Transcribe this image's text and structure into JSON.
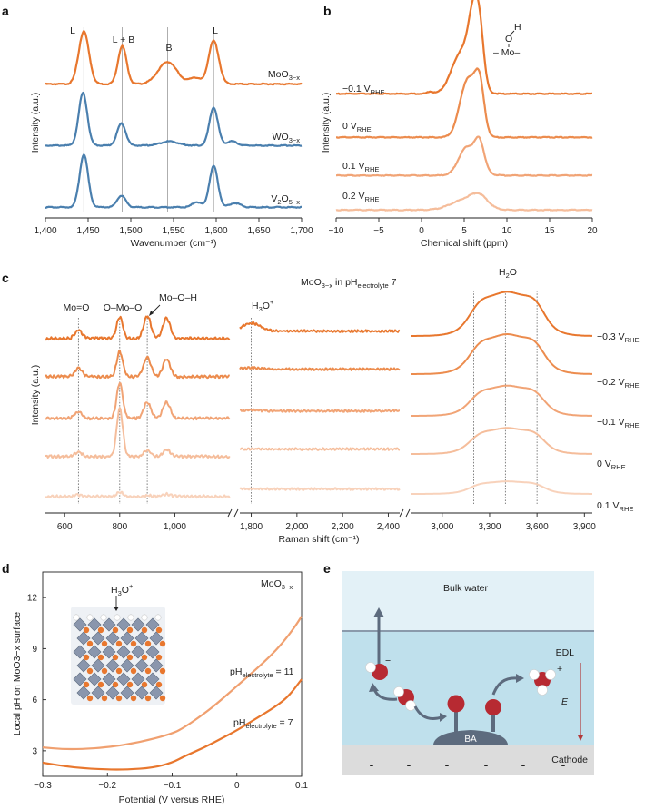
{
  "colors": {
    "moo3": "#e8772e",
    "wo3": "#4a7fae",
    "v2o5": "#4a7fae",
    "orange_shades": [
      "#e8772e",
      "#ec8c4e",
      "#f1a476",
      "#f5bd9b",
      "#f8d2bb"
    ],
    "ph11": "#f0a070",
    "ph7": "#e8772e",
    "water_top": "#e3f1f7",
    "water_edl": "#bfe0ec",
    "cathode": "#dcdcdc",
    "ba": "#5d6b7e",
    "arrow_e": "#b23a3a"
  },
  "panels": {
    "a": {
      "label": "a",
      "ylabel": "Intensity (a.u.)",
      "xlabel": "Wavenumber (cm⁻¹)",
      "xticks": [
        "1,400",
        "1,450",
        "1,500",
        "1,550",
        "1,600",
        "1,650",
        "1,700"
      ],
      "peak_labels": [
        "L",
        "L + B",
        "B",
        "L"
      ],
      "series_names": [
        "MoO3−x",
        "WO3−x",
        "V2O5−x"
      ],
      "series_base": [
        "MoO",
        "WO",
        "V"
      ],
      "series_sub1": [
        "3−x",
        "3−x",
        "2"
      ],
      "series_mid": [
        "",
        "",
        "O"
      ],
      "series_sub2": [
        "",
        "",
        "5−x"
      ]
    },
    "b": {
      "label": "b",
      "ylabel": "Intensity (a.u.)",
      "xlabel": "Chemical shift (ppm)",
      "xticks": [
        "−10",
        "−5",
        "0",
        "5",
        "10",
        "15",
        "20"
      ],
      "potentials": [
        "−0.1",
        "0",
        "0.1",
        "0.2"
      ],
      "unit_main": "V",
      "unit_sub": "RHE",
      "inset_h": "H",
      "inset_o": "O",
      "inset_mo": "– Mo–"
    },
    "c": {
      "label": "c",
      "ylabel": "Intensity (a.u.)",
      "xlabel": "Raman shift (cm⁻¹)",
      "xticks_left": [
        "600",
        "800",
        "1,000"
      ],
      "xticks_mid": [
        "1,800",
        "2,000",
        "2,200",
        "2,400"
      ],
      "xticks_right": [
        "3,000",
        "3,300",
        "3,600",
        "3,900"
      ],
      "title_main": "MoO",
      "title_sub1": "3−x",
      "title_in": " in pH",
      "title_sub2": "electrolyte",
      "title_end": " 7",
      "band_labels": [
        "Mo=O",
        "O–Mo–O",
        "Mo–O–H"
      ],
      "h3o_label": "H",
      "h3o_sub": "3",
      "h3o_rest": "O",
      "h3o_sup": "+",
      "h2o_label": "H",
      "h2o_sub": "2",
      "h2o_rest": "O",
      "potentials": [
        "−0.3",
        "−0.2",
        "−0.1",
        "0",
        "0.1"
      ],
      "unit_main": "V",
      "unit_sub": "RHE"
    },
    "d": {
      "label": "d",
      "title_main": "MoO",
      "title_sub": "3−x",
      "ylabel": "Local pH on MoO3−x surface",
      "xlabel": "Potential (V versus RHE)",
      "xticks": [
        "−0.3",
        "−0.2",
        "−0.1",
        "0",
        "0.1"
      ],
      "yticks": [
        "3",
        "6",
        "9",
        "12"
      ],
      "series_labels": [
        "pH",
        "pH"
      ],
      "series_subs": [
        "electrolyte",
        "electrolyte"
      ],
      "series_vals": [
        " = 11",
        " = 7"
      ],
      "inset_label": "H",
      "inset_sub": "3",
      "inset_rest": "O",
      "inset_sup": "+"
    },
    "e": {
      "label": "e",
      "bulk": "Bulk water",
      "edl": "EDL",
      "e_field": "E",
      "cathode": "Cathode",
      "ba": "BA",
      "minus": "−",
      "plus": "+",
      "charge": "-"
    }
  },
  "chart_data": [
    {
      "type": "line",
      "panel": "a",
      "title": "",
      "xlabel": "Wavenumber (cm⁻¹)",
      "ylabel": "Intensity (a.u.)",
      "xlim": [
        1400,
        1700
      ],
      "guide_lines": [
        1445,
        1490,
        1543,
        1597
      ],
      "peak_labels": [
        {
          "text": "L",
          "x": 1445
        },
        {
          "text": "L + B",
          "x": 1490
        },
        {
          "text": "B",
          "x": 1543
        },
        {
          "text": "L",
          "x": 1597
        }
      ],
      "series": [
        {
          "name": "MoO3−x",
          "offset": 2.0,
          "baseline": 0.06,
          "peaks": [
            [
              1445,
              1.0,
              6
            ],
            [
              1490,
              0.72,
              5
            ],
            [
              1543,
              0.42,
              11
            ],
            [
              1597,
              0.82,
              6
            ],
            [
              1575,
              0.12,
              6
            ]
          ]
        },
        {
          "name": "WO3−x",
          "offset": 1.0,
          "baseline": 0.03,
          "peaks": [
            [
              1444,
              1.0,
              5
            ],
            [
              1489,
              0.42,
              5
            ],
            [
              1545,
              0.08,
              10
            ],
            [
              1597,
              0.72,
              5
            ],
            [
              1618,
              0.08,
              6
            ]
          ]
        },
        {
          "name": "V2O5−x",
          "offset": 0.0,
          "baseline": 0.03,
          "peaks": [
            [
              1445,
              1.0,
              5
            ],
            [
              1489,
              0.22,
              5
            ],
            [
              1577,
              0.1,
              5
            ],
            [
              1597,
              0.78,
              5
            ],
            [
              1622,
              0.08,
              6
            ]
          ]
        }
      ]
    },
    {
      "type": "line",
      "panel": "b",
      "title": "",
      "xlabel": "Chemical shift (ppm)",
      "ylabel": "Intensity (a.u.)",
      "xlim": [
        -10,
        20
      ],
      "series": [
        {
          "name": "−0.1 V_RHE",
          "offset": 3.0,
          "peaks": [
            [
              5.0,
              0.45,
              1.2
            ],
            [
              6.0,
              0.7,
              0.55
            ],
            [
              6.8,
              0.75,
              0.5
            ],
            [
              4.2,
              0.15,
              1.0
            ],
            [
              1.0,
              0.03,
              0.3
            ]
          ]
        },
        {
          "name": "0 V_RHE",
          "offset": 2.0,
          "peaks": [
            [
              5.2,
              0.6,
              0.85
            ],
            [
              6.8,
              0.62,
              0.55
            ],
            [
              6.0,
              0.25,
              0.8
            ]
          ]
        },
        {
          "name": "0.1 V_RHE",
          "offset": 1.0,
          "peaks": [
            [
              5.2,
              0.28,
              0.9
            ],
            [
              6.8,
              0.35,
              0.55
            ],
            [
              6.0,
              0.12,
              1.2
            ]
          ]
        },
        {
          "name": "0.2 V_RHE",
          "offset": 0.0,
          "peaks": [
            [
              5.0,
              0.13,
              1.6
            ],
            [
              6.8,
              0.15,
              1.0
            ]
          ]
        }
      ]
    },
    {
      "type": "line",
      "panel": "c",
      "title": "MoO3−x in pH_electrolyte 7",
      "xlabel": "Raman shift (cm⁻¹)",
      "ylabel": "Intensity (a.u.)",
      "segments": [
        [
          530,
          1200
        ],
        [
          1750,
          2450
        ],
        [
          2800,
          3950
        ]
      ],
      "guide_lines": [
        650,
        800,
        900,
        1800,
        3200,
        3400,
        3600
      ],
      "series": [
        {
          "name": "−0.3 V_RHE",
          "offset": 4,
          "peaks_low": [
            [
              650,
              0.18
            ],
            [
              800,
              0.48
            ],
            [
              900,
              0.5
            ],
            [
              970,
              0.45
            ]
          ],
          "h3o": 0.22,
          "water": 1.05
        },
        {
          "name": "−0.2 V_RHE",
          "offset": 3,
          "peaks_low": [
            [
              650,
              0.18
            ],
            [
              800,
              0.55
            ],
            [
              900,
              0.42
            ],
            [
              970,
              0.38
            ]
          ],
          "h3o": 0.04,
          "water": 0.95
        },
        {
          "name": "−0.1 V_RHE",
          "offset": 2,
          "peaks_low": [
            [
              650,
              0.15
            ],
            [
              800,
              0.78
            ],
            [
              900,
              0.35
            ],
            [
              970,
              0.36
            ]
          ],
          "h3o": 0.02,
          "water": 0.72
        },
        {
          "name": "0 V_RHE",
          "offset": 1,
          "peaks_low": [
            [
              650,
              0.1
            ],
            [
              800,
              1.05
            ],
            [
              900,
              0.14
            ],
            [
              970,
              0.15
            ]
          ],
          "h3o": 0.0,
          "water": 0.62
        },
        {
          "name": "0.1 V_RHE",
          "offset": 0,
          "peaks_low": [
            [
              650,
              0.03
            ],
            [
              800,
              0.1
            ],
            [
              900,
              0.02
            ],
            [
              970,
              0.05
            ]
          ],
          "h3o": 0.0,
          "water": 0.3
        }
      ]
    },
    {
      "type": "line",
      "panel": "d",
      "title": "MoO3−x",
      "xlabel": "Potential (V versus RHE)",
      "ylabel": "Local pH on MoO3−x surface",
      "xlim": [
        -0.3,
        0.1
      ],
      "ylim": [
        1.5,
        13.5
      ],
      "series": [
        {
          "name": "pH_electrolyte = 11",
          "x": [
            -0.3,
            -0.27,
            -0.24,
            -0.2,
            -0.15,
            -0.1,
            -0.08,
            -0.05,
            -0.03,
            0.0,
            0.03,
            0.05,
            0.07,
            0.09,
            0.1
          ],
          "y": [
            3.2,
            3.1,
            3.1,
            3.2,
            3.5,
            4.0,
            4.4,
            5.2,
            5.8,
            6.8,
            7.8,
            8.5,
            9.3,
            10.3,
            10.9
          ]
        },
        {
          "name": "pH_electrolyte = 7",
          "x": [
            -0.3,
            -0.25,
            -0.2,
            -0.17,
            -0.13,
            -0.1,
            -0.08,
            -0.05,
            -0.02,
            0.0,
            0.03,
            0.06,
            0.08,
            0.1
          ],
          "y": [
            2.3,
            2.0,
            1.9,
            1.9,
            2.0,
            2.3,
            2.7,
            3.2,
            3.8,
            4.2,
            4.9,
            5.6,
            6.2,
            7.2
          ]
        }
      ]
    }
  ]
}
